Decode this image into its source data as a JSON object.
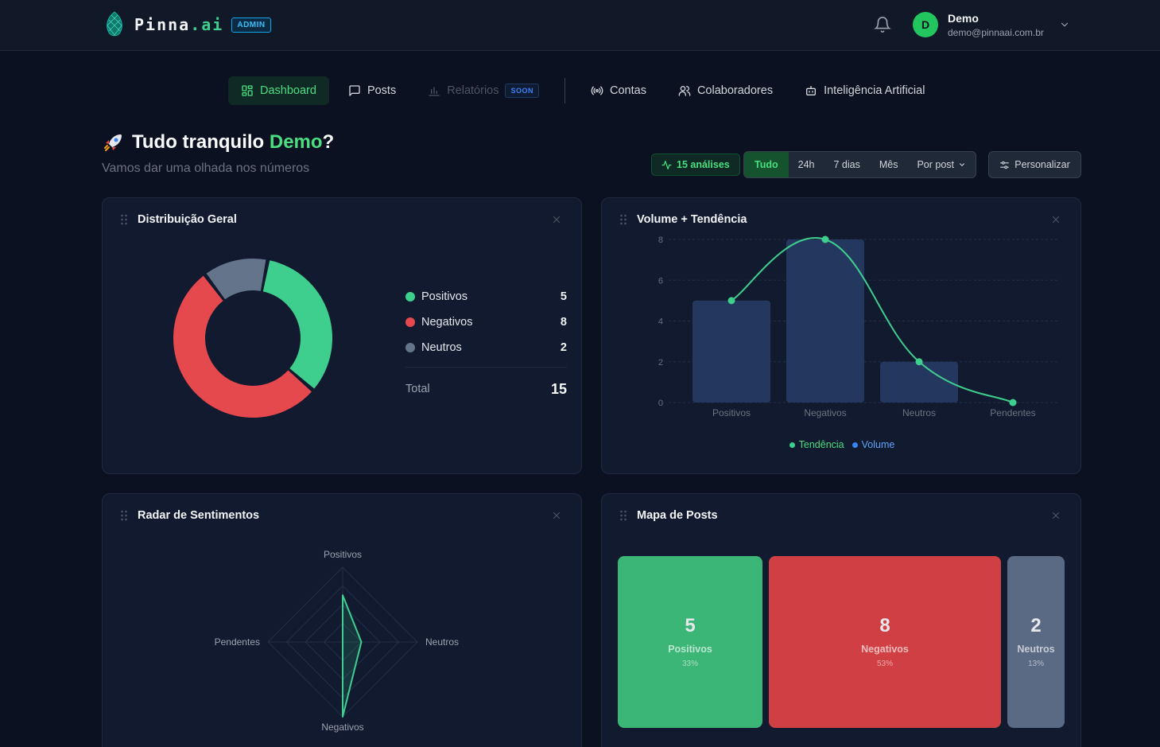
{
  "brand": {
    "name": "Pinna",
    "suffix": ".ai",
    "badge": "ADMIN"
  },
  "user": {
    "initial": "D",
    "name": "Demo",
    "email": "demo@pinnaai.com.br"
  },
  "nav": {
    "dashboard": "Dashboard",
    "posts": "Posts",
    "reports": "Relatórios",
    "soon": "SOON",
    "accounts": "Contas",
    "collaborators": "Colaboradores",
    "ai": "Inteligência Artificial"
  },
  "greeting": {
    "prefix": "Tudo tranquilo ",
    "name": "Demo",
    "suffix": "?",
    "subtitle": "Vamos dar uma olhada nos números"
  },
  "toolbar": {
    "analyses": "15 análises",
    "periods": [
      "Tudo",
      "24h",
      "7 dias",
      "Mês",
      "Por post"
    ],
    "active_period": "Tudo",
    "customize": "Personalizar"
  },
  "colors": {
    "positive": "#3ecf8e",
    "negative": "#e5484d",
    "neutral": "#64748b",
    "volume": "#24385f",
    "accent": "#4ade80"
  },
  "cards": {
    "distribution": {
      "title": "Distribuição Geral",
      "items": [
        {
          "label": "Positivos",
          "value": "5"
        },
        {
          "label": "Negativos",
          "value": "8"
        },
        {
          "label": "Neutros",
          "value": "2"
        }
      ],
      "total_label": "Total",
      "total_value": "15"
    },
    "volume": {
      "title": "Volume + Tendência"
    },
    "radar": {
      "title": "Radar de Sentimentos"
    },
    "map": {
      "title": "Mapa de Posts",
      "tiles": [
        {
          "value": "5",
          "label": "Positivos",
          "pct": "33%"
        },
        {
          "value": "8",
          "label": "Negativos",
          "pct": "53%"
        },
        {
          "value": "2",
          "label": "Neutros",
          "pct": "13%"
        }
      ]
    }
  },
  "chart_data": [
    {
      "type": "pie",
      "categories": [
        "Positivos",
        "Negativos",
        "Neutros"
      ],
      "values": [
        5,
        8,
        2
      ]
    },
    {
      "type": "bar",
      "categories": [
        "Positivos",
        "Negativos",
        "Neutros",
        "Pendentes"
      ],
      "series": [
        {
          "name": "Volume",
          "type": "bar",
          "values": [
            5,
            8,
            2,
            0
          ]
        },
        {
          "name": "Tendência",
          "type": "line",
          "values": [
            5,
            8,
            2,
            0
          ]
        }
      ],
      "yticks": [
        0,
        2,
        4,
        6,
        8
      ],
      "ylim": [
        0,
        8
      ],
      "legend": "bottom",
      "grid": true
    },
    {
      "type": "radar",
      "axes": [
        "Positivos",
        "Neutros",
        "Negativos",
        "Pendentes"
      ],
      "values": [
        5,
        2,
        8,
        0
      ],
      "max": 8
    }
  ]
}
